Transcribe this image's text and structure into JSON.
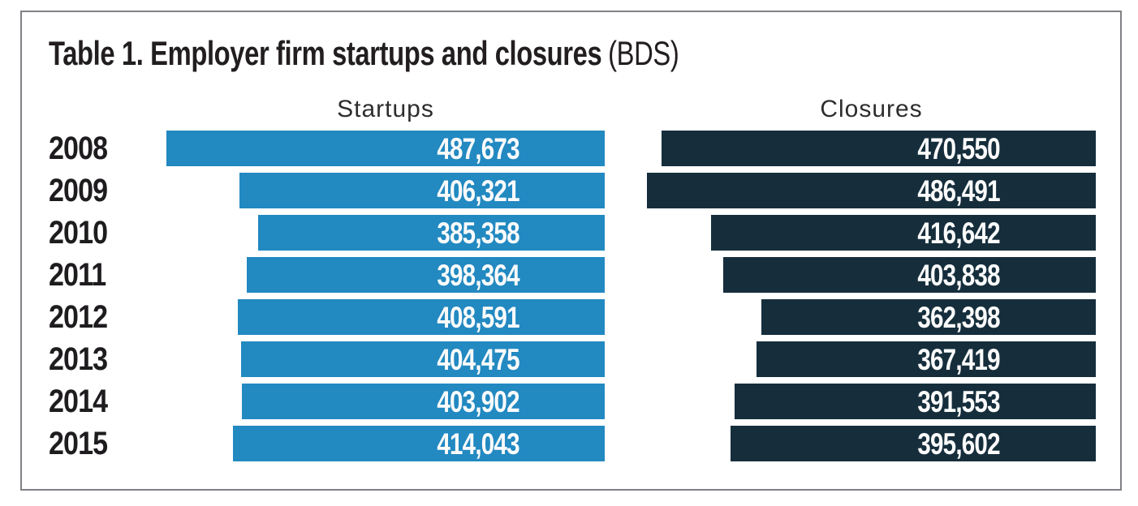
{
  "title": {
    "main": "Table 1. Employer firm startups and closures",
    "suffix": "(BDS)"
  },
  "columns": {
    "startups": "Startups",
    "closures": "Closures"
  },
  "colors": {
    "startups_bar": "#2289c1",
    "closures_bar": "#162e3c",
    "frame_border": "#808086",
    "title_text": "#221e20",
    "header_text": "#2d2d2d",
    "year_text": "#1e1c1e",
    "value_text": "#fbfbfb"
  },
  "chart_data": {
    "type": "bar",
    "orientation": "horizontal",
    "title": "Table 1. Employer firm startups and closures (BDS)",
    "categories": [
      "2008",
      "2009",
      "2010",
      "2011",
      "2012",
      "2013",
      "2014",
      "2015"
    ],
    "series": [
      {
        "name": "Startups",
        "values": [
          487673,
          406321,
          385358,
          398364,
          408591,
          404475,
          403902,
          414043
        ],
        "labels": [
          "487,673",
          "406,321",
          "385,358",
          "398,364",
          "408,591",
          "404,475",
          "403,902",
          "414,043"
        ],
        "color": "#2289c1"
      },
      {
        "name": "Closures",
        "values": [
          470550,
          486491,
          416642,
          403838,
          362398,
          367419,
          391553,
          395602
        ],
        "labels": [
          "470,550",
          "486,491",
          "416,642",
          "403,838",
          "362,398",
          "367,419",
          "391,553",
          "395,602"
        ],
        "color": "#162e3c"
      }
    ],
    "bar_alignment": "right",
    "value_label_position": "inside-right",
    "grid": false,
    "legend": "column-headers"
  }
}
